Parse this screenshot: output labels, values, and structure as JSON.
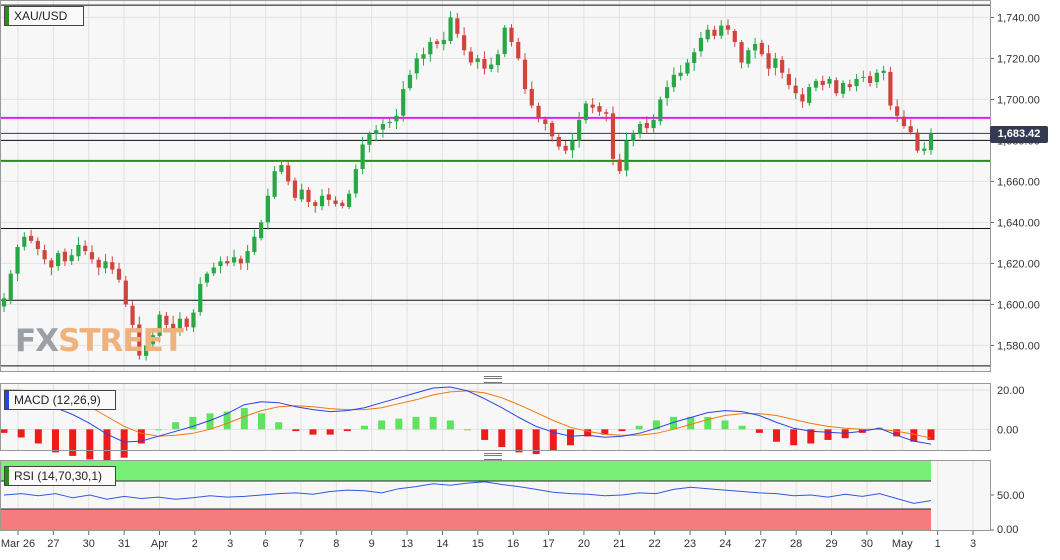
{
  "symbol": "XAU/USD",
  "current_price_label": "1,683.42",
  "brand": {
    "part1": "FX",
    "part2": "STREET"
  },
  "colors": {
    "up": "#27a745",
    "down": "#d0443e",
    "macd_line": "#2a44e0",
    "signal_line": "#f07a10",
    "hist_pos": "#5fe35f",
    "hist_neg": "#ee1b1b",
    "rsi_line": "#3557e0",
    "rsi_over": "#78f078",
    "rsi_under": "#f47c7c",
    "magenta": "#e81ee8",
    "green_level": "#2e8b1e"
  },
  "chart_data": [
    {
      "type": "candlestick",
      "title": "XAU/USD",
      "ylim": [
        1568,
        1748
      ],
      "y_ticks": [
        "1,580.00",
        "1,600.00",
        "1,620.00",
        "1,640.00",
        "1,660.00",
        "1,680.00",
        "1,700.00",
        "1,720.00",
        "1,740.00"
      ],
      "x_ticks": [
        "Mar 26",
        "27",
        "30",
        "31",
        "Apr",
        "2",
        "3",
        "6",
        "7",
        "8",
        "9",
        "13",
        "14",
        "15",
        "16",
        "17",
        "20",
        "21",
        "22",
        "23",
        "24",
        "27",
        "28",
        "29",
        "30",
        "May",
        "1",
        "3"
      ],
      "horizontal_levels": [
        {
          "value": 1691,
          "color": "magenta"
        },
        {
          "value": 1683.42,
          "color": "navy"
        },
        {
          "value": 1680,
          "color": "black"
        },
        {
          "value": 1670,
          "color": "green"
        },
        {
          "value": 1637,
          "color": "black"
        },
        {
          "value": 1602,
          "color": "black"
        },
        {
          "value": 1746,
          "color": "black"
        },
        {
          "value": 1570,
          "color": "black"
        }
      ],
      "close_series": [
        1603,
        1615,
        1628,
        1633,
        1631,
        1627,
        1622,
        1618,
        1625,
        1621,
        1624,
        1629,
        1626,
        1622,
        1618,
        1621,
        1617,
        1612,
        1600,
        1590,
        1575,
        1580,
        1585,
        1595,
        1590,
        1587,
        1593,
        1589,
        1596,
        1610,
        1615,
        1618,
        1621,
        1620,
        1623,
        1620,
        1626,
        1633,
        1640,
        1653,
        1665,
        1668,
        1660,
        1652,
        1656,
        1650,
        1648,
        1653,
        1651,
        1649,
        1648,
        1654,
        1666,
        1678,
        1683,
        1685,
        1688,
        1689,
        1692,
        1705,
        1712,
        1720,
        1722,
        1728,
        1727,
        1729,
        1740,
        1732,
        1724,
        1718,
        1720,
        1715,
        1717,
        1722,
        1735,
        1728,
        1720,
        1705,
        1697,
        1691,
        1688,
        1682,
        1677,
        1675,
        1680,
        1690,
        1698,
        1696,
        1694,
        1693,
        1671,
        1665,
        1680,
        1683,
        1688,
        1686,
        1690,
        1700,
        1706,
        1712,
        1713,
        1718,
        1723,
        1730,
        1734,
        1731,
        1736,
        1734,
        1728,
        1718,
        1724,
        1727,
        1722,
        1715,
        1720,
        1713,
        1707,
        1703,
        1699,
        1706,
        1709,
        1707,
        1710,
        1703,
        1708,
        1706,
        1710,
        1711,
        1708,
        1713,
        1714,
        1697,
        1692,
        1687,
        1684,
        1675,
        1676,
        1683.4
      ]
    },
    {
      "type": "line",
      "title": "MACD (12,26,9)",
      "y_ticks": [
        "20.00",
        "0.00"
      ],
      "ylim": [
        -10,
        22
      ],
      "series": [
        {
          "name": "MACD",
          "values": [
            19.0,
            17.5,
            15.0,
            11.0,
            7.5,
            3.0,
            -2.5,
            -6.5,
            -6.0,
            -3.5,
            -1.0,
            1.5,
            4.5,
            8.0,
            12.5,
            14.0,
            13.5,
            11.5,
            10.0,
            9.0,
            9.5,
            11.0,
            13.5,
            16.0,
            18.5,
            21.0,
            21.5,
            19.5,
            15.5,
            11.0,
            6.0,
            1.5,
            -1.5,
            -3.5,
            -3.0,
            -4.0,
            -3.5,
            -2.0,
            0.5,
            3.5,
            6.0,
            8.5,
            9.5,
            9.0,
            7.0,
            3.5,
            0.5,
            -1.0,
            -1.5,
            -2.0,
            -1.0,
            0.5,
            -3.0,
            -6.0,
            -7.5
          ]
        },
        {
          "name": "Signal",
          "values": [
            20.0,
            19.8,
            19.0,
            17.5,
            15.0,
            11.5,
            6.5,
            1.5,
            -2.0,
            -3.5,
            -3.0,
            -2.0,
            0.0,
            3.0,
            6.5,
            9.5,
            11.5,
            12.0,
            11.5,
            10.5,
            10.0,
            10.0,
            11.0,
            13.0,
            15.0,
            17.5,
            19.0,
            19.5,
            18.5,
            16.0,
            12.5,
            8.5,
            4.5,
            1.0,
            -1.0,
            -2.5,
            -3.0,
            -3.0,
            -2.0,
            0.0,
            2.5,
            5.0,
            7.0,
            8.0,
            8.0,
            7.0,
            5.0,
            3.0,
            1.5,
            0.5,
            0.0,
            0.0,
            -1.0,
            -2.5,
            -4.5
          ]
        }
      ]
    },
    {
      "type": "line",
      "title": "RSI (14,70,30,1)",
      "y_ticks": [
        "50.00",
        "0.00"
      ],
      "ylim": [
        0,
        100
      ],
      "bands": {
        "overbought": 70,
        "oversold": 30
      },
      "series": [
        {
          "name": "RSI",
          "values": [
            50,
            52,
            49,
            52,
            46,
            50,
            44,
            48,
            45,
            47,
            44,
            46,
            49,
            47,
            48,
            50,
            52,
            53,
            51,
            55,
            57,
            56,
            53,
            59,
            62,
            66,
            64,
            67,
            69,
            65,
            62,
            58,
            54,
            52,
            51,
            49,
            50,
            53,
            52,
            58,
            61,
            59,
            57,
            55,
            53,
            52,
            49,
            50,
            47,
            51,
            48,
            52,
            45,
            38,
            42
          ]
        }
      ]
    }
  ]
}
